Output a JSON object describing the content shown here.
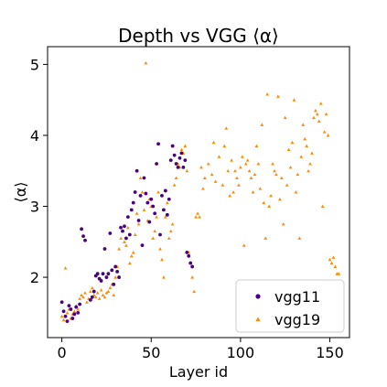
{
  "chart_data": {
    "type": "scatter",
    "title": "Depth vs VGG ⟨α⟩",
    "xlabel": "Layer id",
    "ylabel": "⟨α⟩",
    "xlim": [
      -8,
      161
    ],
    "ylim": [
      1.15,
      5.25
    ],
    "x_ticks": [
      0,
      50,
      100,
      150
    ],
    "y_ticks": [
      2,
      3,
      4,
      5
    ],
    "grid": false,
    "legend_position": "lower-right",
    "series": [
      {
        "name": "vgg11",
        "color": "#4b0082",
        "marker": "circle",
        "points": [
          [
            0,
            1.65
          ],
          [
            1,
            1.52
          ],
          [
            2,
            1.45
          ],
          [
            3,
            1.38
          ],
          [
            4,
            1.6
          ],
          [
            5,
            1.55
          ],
          [
            6,
            1.42
          ],
          [
            7,
            1.48
          ],
          [
            8,
            1.58
          ],
          [
            9,
            1.5
          ],
          [
            10,
            1.62
          ],
          [
            11,
            2.68
          ],
          [
            12,
            2.58
          ],
          [
            13,
            2.52
          ],
          [
            16,
            1.68
          ],
          [
            17,
            1.72
          ],
          [
            18,
            1.8
          ],
          [
            19,
            2.02
          ],
          [
            20,
            2.05
          ],
          [
            21,
            1.98
          ],
          [
            22,
            1.95
          ],
          [
            23,
            2.05
          ],
          [
            24,
            2.4
          ],
          [
            25,
            2.0
          ],
          [
            26,
            2.05
          ],
          [
            27,
            2.62
          ],
          [
            28,
            2.1
          ],
          [
            29,
            1.9
          ],
          [
            30,
            2.15
          ],
          [
            31,
            2.08
          ],
          [
            32,
            2.0
          ],
          [
            33,
            2.7
          ],
          [
            34,
            2.65
          ],
          [
            35,
            2.72
          ],
          [
            36,
            2.55
          ],
          [
            37,
            2.85
          ],
          [
            38,
            2.6
          ],
          [
            39,
            2.95
          ],
          [
            40,
            3.05
          ],
          [
            41,
            3.2
          ],
          [
            42,
            3.5
          ],
          [
            43,
            2.8
          ],
          [
            44,
            3.15
          ],
          [
            45,
            2.45
          ],
          [
            46,
            3.4
          ],
          [
            47,
            3.18
          ],
          [
            48,
            3.05
          ],
          [
            49,
            2.78
          ],
          [
            50,
            3.1
          ],
          [
            51,
            3.0
          ],
          [
            52,
            2.9
          ],
          [
            53,
            3.6
          ],
          [
            54,
            3.88
          ],
          [
            55,
            2.6
          ],
          [
            56,
            3.15
          ],
          [
            57,
            2.95
          ],
          [
            58,
            3.22
          ],
          [
            59,
            2.88
          ],
          [
            60,
            3.1
          ],
          [
            61,
            3.65
          ],
          [
            62,
            3.85
          ],
          [
            63,
            3.72
          ],
          [
            64,
            3.6
          ],
          [
            65,
            3.55
          ],
          [
            66,
            3.68
          ],
          [
            67,
            3.75
          ],
          [
            68,
            3.55
          ],
          [
            69,
            3.65
          ],
          [
            70,
            2.35
          ],
          [
            71,
            2.3
          ],
          [
            72,
            2.2
          ],
          [
            73,
            2.15
          ]
        ]
      },
      {
        "name": "vgg19",
        "color": "#ff8c00",
        "marker": "triangle",
        "points": [
          [
            0,
            1.45
          ],
          [
            1,
            1.4
          ],
          [
            2,
            2.13
          ],
          [
            3,
            1.5
          ],
          [
            4,
            1.55
          ],
          [
            5,
            1.42
          ],
          [
            6,
            1.48
          ],
          [
            7,
            1.52
          ],
          [
            8,
            1.6
          ],
          [
            9,
            1.55
          ],
          [
            10,
            1.7
          ],
          [
            11,
            1.75
          ],
          [
            12,
            1.72
          ],
          [
            13,
            1.78
          ],
          [
            14,
            1.65
          ],
          [
            15,
            1.7
          ],
          [
            16,
            1.8
          ],
          [
            17,
            1.85
          ],
          [
            18,
            1.75
          ],
          [
            19,
            1.72
          ],
          [
            20,
            1.78
          ],
          [
            21,
            1.7
          ],
          [
            22,
            1.82
          ],
          [
            23,
            1.75
          ],
          [
            24,
            1.72
          ],
          [
            25,
            1.78
          ],
          [
            26,
            1.8
          ],
          [
            27,
            1.85
          ],
          [
            28,
            1.9
          ],
          [
            29,
            1.75
          ],
          [
            30,
            2.0
          ],
          [
            31,
            2.15
          ],
          [
            32,
            2.4
          ],
          [
            33,
            2.55
          ],
          [
            34,
            2.65
          ],
          [
            35,
            2.5
          ],
          [
            36,
            2.45
          ],
          [
            37,
            2.7
          ],
          [
            38,
            2.2
          ],
          [
            39,
            2.3
          ],
          [
            40,
            2.35
          ],
          [
            41,
            2.6
          ],
          [
            42,
            2.9
          ],
          [
            43,
            2.75
          ],
          [
            44,
            3.4
          ],
          [
            45,
            3.2
          ],
          [
            46,
            2.95
          ],
          [
            47,
            5.02
          ],
          [
            48,
            2.8
          ],
          [
            49,
            3.1
          ],
          [
            50,
            3.0
          ],
          [
            51,
            2.55
          ],
          [
            52,
            2.65
          ],
          [
            53,
            2.85
          ],
          [
            54,
            3.2
          ],
          [
            55,
            2.4
          ],
          [
            56,
            2.25
          ],
          [
            57,
            2.0
          ],
          [
            58,
            2.85
          ],
          [
            59,
            3.05
          ],
          [
            60,
            2.55
          ],
          [
            61,
            2.65
          ],
          [
            62,
            2.75
          ],
          [
            63,
            3.3
          ],
          [
            64,
            3.4
          ],
          [
            65,
            3.6
          ],
          [
            66,
            3.55
          ],
          [
            67,
            3.8
          ],
          [
            68,
            3.75
          ],
          [
            69,
            3.85
          ],
          [
            70,
            3.5
          ],
          [
            71,
            2.35
          ],
          [
            72,
            2.2
          ],
          [
            73,
            2.0
          ],
          [
            74,
            1.8
          ],
          [
            75,
            2.85
          ],
          [
            76,
            2.9
          ],
          [
            77,
            2.85
          ],
          [
            78,
            3.55
          ],
          [
            79,
            3.25
          ],
          [
            80,
            3.4
          ],
          [
            82,
            3.6
          ],
          [
            84,
            3.45
          ],
          [
            85,
            3.9
          ],
          [
            86,
            3.35
          ],
          [
            88,
            3.7
          ],
          [
            90,
            3.3
          ],
          [
            91,
            3.85
          ],
          [
            92,
            4.1
          ],
          [
            93,
            3.5
          ],
          [
            94,
            3.15
          ],
          [
            95,
            3.65
          ],
          [
            96,
            3.2
          ],
          [
            97,
            3.5
          ],
          [
            98,
            3.4
          ],
          [
            99,
            3.3
          ],
          [
            100,
            3.55
          ],
          [
            101,
            3.7
          ],
          [
            102,
            2.45
          ],
          [
            103,
            3.6
          ],
          [
            104,
            3.65
          ],
          [
            105,
            3.5
          ],
          [
            106,
            3.4
          ],
          [
            107,
            3.2
          ],
          [
            108,
            3.45
          ],
          [
            109,
            3.85
          ],
          [
            110,
            3.6
          ],
          [
            111,
            3.25
          ],
          [
            112,
            4.15
          ],
          [
            113,
            3.05
          ],
          [
            114,
            2.55
          ],
          [
            115,
            4.58
          ],
          [
            116,
            3.0
          ],
          [
            117,
            3.15
          ],
          [
            118,
            3.6
          ],
          [
            119,
            3.5
          ],
          [
            120,
            3.45
          ],
          [
            121,
            4.55
          ],
          [
            122,
            3.1
          ],
          [
            123,
            3.4
          ],
          [
            124,
            2.75
          ],
          [
            125,
            4.25
          ],
          [
            126,
            3.3
          ],
          [
            127,
            3.8
          ],
          [
            128,
            3.55
          ],
          [
            129,
            3.9
          ],
          [
            130,
            4.5
          ],
          [
            131,
            3.2
          ],
          [
            132,
            3.45
          ],
          [
            133,
            2.55
          ],
          [
            134,
            3.7
          ],
          [
            135,
            4.15
          ],
          [
            136,
            3.95
          ],
          [
            137,
            3.85
          ],
          [
            138,
            3.5
          ],
          [
            139,
            3.6
          ],
          [
            140,
            3.75
          ],
          [
            141,
            4.25
          ],
          [
            142,
            4.35
          ],
          [
            143,
            4.3
          ],
          [
            144,
            4.2
          ],
          [
            145,
            4.45
          ],
          [
            146,
            3.0
          ],
          [
            147,
            4.05
          ],
          [
            148,
            4.3
          ],
          [
            149,
            4.0
          ],
          [
            150,
            2.25
          ],
          [
            151,
            2.2
          ],
          [
            152,
            2.28
          ],
          [
            153,
            2.15
          ],
          [
            154,
            2.05
          ],
          [
            155,
            2.05
          ]
        ]
      }
    ]
  }
}
